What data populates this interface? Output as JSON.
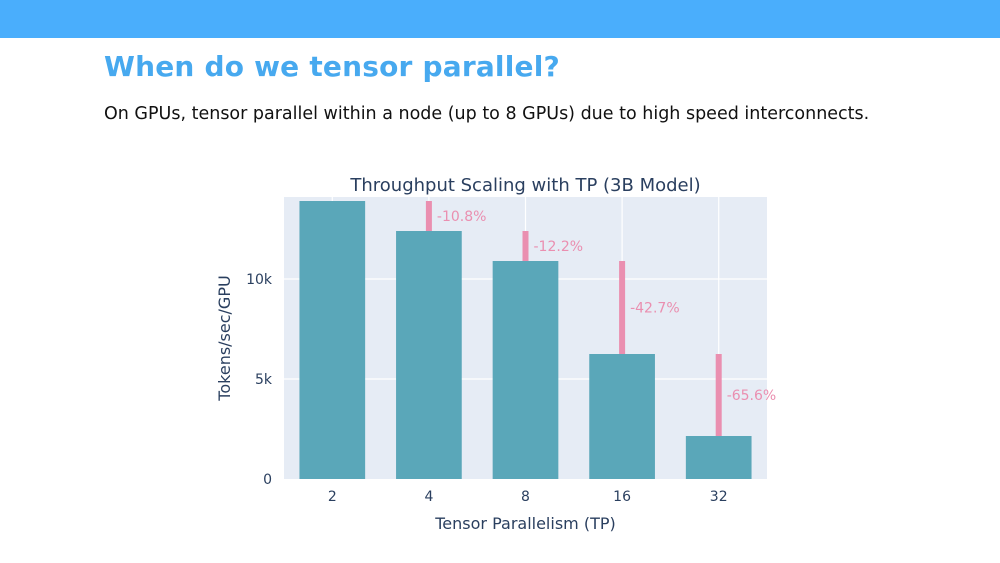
{
  "slide": {
    "title": "When do we tensor parallel?",
    "body": "On GPUs, tensor parallel within a node (up to 8 GPUs) due to high speed interconnects."
  },
  "chart_data": {
    "type": "bar",
    "title": "Throughput Scaling with TP (3B Model)",
    "xlabel": "Tensor Parallelism (TP)",
    "ylabel": "Tokens/sec/GPU",
    "categories": [
      "2",
      "4",
      "8",
      "16",
      "32"
    ],
    "values": [
      13900,
      12400,
      10900,
      6250,
      2150
    ],
    "drops": [
      null,
      "-10.8%",
      "-12.2%",
      "-42.7%",
      "-65.6%"
    ],
    "ylim": [
      0,
      14100
    ],
    "yticks": [
      0,
      5000,
      10000
    ],
    "ytick_labels": [
      "0",
      "5k",
      "10k"
    ],
    "grid": true,
    "colors": {
      "bar": "#5aa7b9",
      "drop": "#ea8fb0",
      "plot_bg": "#e6ecf5",
      "grid": "#ffffff",
      "text": "#2a3f5f"
    }
  }
}
